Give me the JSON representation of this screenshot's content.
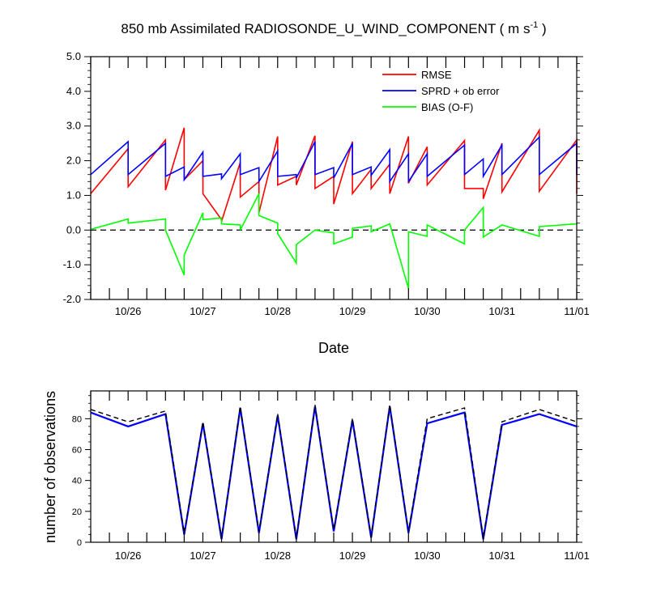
{
  "chart_data": [
    {
      "type": "line",
      "title_main": "850 mb Assimilated RADIOSONDE_U_WIND_COMPONENT ( m s",
      "title_sup": "-1",
      "title_end": " )",
      "xlabel": "Date",
      "ylabel": "",
      "xlim": [
        0,
        6.5
      ],
      "ylim": [
        -2.0,
        5.0
      ],
      "yticks": [
        -2.0,
        -1.0,
        0.0,
        1.0,
        2.0,
        3.0,
        4.0,
        5.0
      ],
      "ytick_labels": [
        "-2.0",
        "-1.0",
        "0.0",
        "1.0",
        "2.0",
        "3.0",
        "4.0",
        "5.0"
      ],
      "xticks": [
        0.5,
        1.5,
        2.5,
        3.5,
        4.5,
        5.5,
        6.5
      ],
      "xtick_labels": [
        "10/26",
        "10/27",
        "10/28",
        "10/29",
        "10/30",
        "10/31",
        "11/01"
      ],
      "zero_line": true,
      "legend_position": "top-right",
      "series": [
        {
          "name": "RMSE",
          "color": "#ff0000",
          "points": [
            [
              0,
              1.05
            ],
            [
              0.5,
              2.35
            ],
            [
              0.5,
              1.25
            ],
            [
              1.0,
              2.6
            ],
            [
              1.0,
              1.15
            ],
            [
              1.25,
              2.95
            ],
            [
              1.25,
              1.45
            ],
            [
              1.5,
              2.0
            ],
            [
              1.5,
              1.05
            ],
            [
              1.75,
              0.3
            ],
            [
              1.75,
              0.25
            ],
            [
              2.0,
              1.95
            ],
            [
              2.0,
              0.95
            ],
            [
              2.25,
              1.4
            ],
            [
              2.25,
              0.5
            ],
            [
              2.5,
              2.7
            ],
            [
              2.5,
              1.3
            ],
            [
              2.75,
              1.55
            ],
            [
              2.75,
              1.3
            ],
            [
              3.0,
              2.72
            ],
            [
              3.0,
              1.2
            ],
            [
              3.25,
              1.55
            ],
            [
              3.25,
              0.75
            ],
            [
              3.5,
              2.55
            ],
            [
              3.5,
              1.05
            ],
            [
              3.75,
              1.75
            ],
            [
              3.75,
              1.2
            ],
            [
              4.0,
              1.9
            ],
            [
              4.0,
              1.05
            ],
            [
              4.25,
              2.7
            ],
            [
              4.25,
              1.35
            ],
            [
              4.5,
              2.4
            ],
            [
              4.5,
              1.3
            ],
            [
              5.0,
              2.58
            ],
            [
              5.0,
              1.2
            ],
            [
              5.25,
              1.2
            ],
            [
              5.25,
              0.9
            ],
            [
              5.5,
              2.5
            ],
            [
              5.5,
              1.1
            ],
            [
              6.0,
              2.88
            ],
            [
              6.0,
              1.12
            ],
            [
              6.5,
              2.6
            ],
            [
              6.5,
              1.05
            ]
          ]
        },
        {
          "name": "SPRD + ob error",
          "color": "#0000ff",
          "points": [
            [
              0,
              1.6
            ],
            [
              0.5,
              2.55
            ],
            [
              0.5,
              1.6
            ],
            [
              1.0,
              2.5
            ],
            [
              1.0,
              1.55
            ],
            [
              1.25,
              1.82
            ],
            [
              1.25,
              1.45
            ],
            [
              1.5,
              2.25
            ],
            [
              1.5,
              1.55
            ],
            [
              1.75,
              1.62
            ],
            [
              1.75,
              1.48
            ],
            [
              2.0,
              2.2
            ],
            [
              2.0,
              1.6
            ],
            [
              2.25,
              1.8
            ],
            [
              2.25,
              1.4
            ],
            [
              2.5,
              2.28
            ],
            [
              2.5,
              1.55
            ],
            [
              2.75,
              1.6
            ],
            [
              2.75,
              1.5
            ],
            [
              3.0,
              2.55
            ],
            [
              3.0,
              1.6
            ],
            [
              3.25,
              1.8
            ],
            [
              3.25,
              1.5
            ],
            [
              3.5,
              2.5
            ],
            [
              3.5,
              1.6
            ],
            [
              3.75,
              1.82
            ],
            [
              3.75,
              1.58
            ],
            [
              4.0,
              2.32
            ],
            [
              4.0,
              1.4
            ],
            [
              4.25,
              2.2
            ],
            [
              4.25,
              1.4
            ],
            [
              4.5,
              2.2
            ],
            [
              4.5,
              1.55
            ],
            [
              5.0,
              2.45
            ],
            [
              5.0,
              1.6
            ],
            [
              5.25,
              2.05
            ],
            [
              5.25,
              1.55
            ],
            [
              5.5,
              2.45
            ],
            [
              5.5,
              1.6
            ],
            [
              6.0,
              2.68
            ],
            [
              6.0,
              1.6
            ],
            [
              6.5,
              2.5
            ],
            [
              6.5,
              1.6
            ]
          ]
        },
        {
          "name": "BIAS (O-F)",
          "color": "#00ff00",
          "points": [
            [
              0,
              0.02
            ],
            [
              0.5,
              0.32
            ],
            [
              0.5,
              0.2
            ],
            [
              1.0,
              0.32
            ],
            [
              1.0,
              0.0
            ],
            [
              1.25,
              -1.3
            ],
            [
              1.25,
              -0.72
            ],
            [
              1.5,
              0.5
            ],
            [
              1.5,
              0.3
            ],
            [
              1.75,
              0.35
            ],
            [
              1.75,
              0.18
            ],
            [
              2.0,
              0.15
            ],
            [
              2.0,
              0.0
            ],
            [
              2.25,
              1.05
            ],
            [
              2.25,
              0.42
            ],
            [
              2.5,
              0.2
            ],
            [
              2.5,
              -0.1
            ],
            [
              2.75,
              -0.95
            ],
            [
              2.75,
              -0.42
            ],
            [
              3.0,
              0.0
            ],
            [
              3.25,
              -0.08
            ],
            [
              3.25,
              -0.4
            ],
            [
              3.5,
              -0.2
            ],
            [
              3.5,
              0.05
            ],
            [
              3.75,
              0.12
            ],
            [
              3.75,
              -0.05
            ],
            [
              4.0,
              0.18
            ],
            [
              4.25,
              -1.68
            ],
            [
              4.25,
              -0.05
            ],
            [
              4.5,
              -0.18
            ],
            [
              4.5,
              0.15
            ],
            [
              5.0,
              -0.4
            ],
            [
              5.0,
              0.0
            ],
            [
              5.25,
              0.65
            ],
            [
              5.25,
              -0.2
            ],
            [
              5.5,
              0.15
            ],
            [
              6.0,
              -0.18
            ],
            [
              6.0,
              0.1
            ],
            [
              6.5,
              0.18
            ]
          ]
        }
      ]
    },
    {
      "type": "line",
      "title": "",
      "xlabel": "",
      "ylabel": "number of observations",
      "xlim": [
        0,
        6.5
      ],
      "ylim": [
        0,
        98
      ],
      "yticks": [
        0,
        20,
        40,
        60,
        80
      ],
      "ytick_labels": [
        "0",
        "20",
        "40",
        "60",
        "80"
      ],
      "xticks": [
        0.5,
        1.5,
        2.5,
        3.5,
        4.5,
        5.5,
        6.5
      ],
      "xtick_labels": [
        "10/26",
        "10/27",
        "10/28",
        "10/29",
        "10/30",
        "10/31",
        "11/01"
      ],
      "series": [
        {
          "color": "#0000ff",
          "style": "solid",
          "points": [
            [
              0,
              84
            ],
            [
              0.5,
              75
            ],
            [
              1.0,
              83
            ],
            [
              1.25,
              5
            ],
            [
              1.5,
              77
            ],
            [
              1.75,
              2
            ],
            [
              2.0,
              87
            ],
            [
              2.25,
              6
            ],
            [
              2.5,
              82
            ],
            [
              2.75,
              2
            ],
            [
              3.0,
              88
            ],
            [
              3.25,
              7
            ],
            [
              3.5,
              79
            ],
            [
              3.75,
              3
            ],
            [
              4.0,
              88
            ],
            [
              4.25,
              6
            ],
            [
              4.5,
              77
            ],
            [
              5.0,
              84
            ],
            [
              5.25,
              2
            ],
            [
              5.5,
              76
            ],
            [
              6.0,
              83
            ],
            [
              6.5,
              75
            ]
          ]
        },
        {
          "color": "#000000",
          "style": "dashed",
          "points": [
            [
              0,
              86
            ],
            [
              0.5,
              78
            ],
            [
              1.0,
              85
            ],
            [
              1.25,
              6
            ],
            [
              1.5,
              78
            ],
            [
              1.75,
              3
            ],
            [
              2.0,
              88
            ],
            [
              2.25,
              7
            ],
            [
              2.5,
              83
            ],
            [
              2.75,
              3
            ],
            [
              3.0,
              89
            ],
            [
              3.25,
              8
            ],
            [
              3.5,
              80
            ],
            [
              3.75,
              4
            ],
            [
              4.0,
              89
            ],
            [
              4.25,
              7
            ],
            [
              4.5,
              80
            ],
            [
              5.0,
              87
            ],
            [
              5.25,
              3
            ],
            [
              5.5,
              78
            ],
            [
              6.0,
              86
            ],
            [
              6.5,
              78
            ]
          ]
        }
      ]
    }
  ]
}
